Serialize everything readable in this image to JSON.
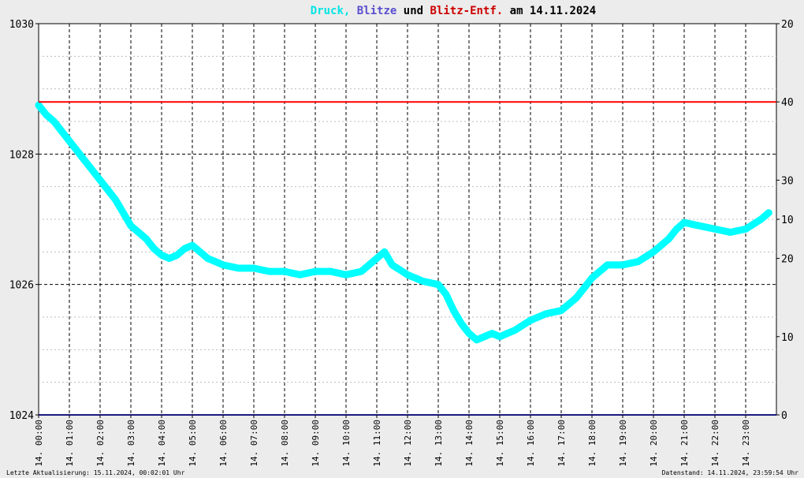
{
  "chart_data": {
    "type": "line",
    "title_parts": [
      {
        "text": "Druck,",
        "color": "#00e5e5"
      },
      {
        "text": "Blitze",
        "color": "#5a4fcf"
      },
      {
        "text": "und",
        "color": "#000000"
      },
      {
        "text": "Blitz-Entf.",
        "color": "#cc0000"
      },
      {
        "text": "am 14.11.2024",
        "color": "#000000"
      }
    ],
    "left_ticks": [
      "1030",
      "1028",
      "1026",
      "1024"
    ],
    "left_tick_values": [
      1030,
      1028,
      1026,
      1024
    ],
    "ylim_left": [
      1024,
      1030
    ],
    "right_ticks": [
      {
        "label": "20",
        "frac": 0.0
      },
      {
        "label": "40",
        "frac": 0.2
      },
      {
        "label": "30",
        "frac": 0.4
      },
      {
        "label": "10",
        "frac": 0.5
      },
      {
        "label": "20",
        "frac": 0.6
      },
      {
        "label": "10",
        "frac": 0.8
      },
      {
        "label": "0",
        "frac": 1.0
      }
    ],
    "x_labels": [
      "14. 00:00",
      "14. 01:00",
      "14. 02:00",
      "14. 03:00",
      "14. 04:00",
      "14. 05:00",
      "14. 06:00",
      "14. 07:00",
      "14. 08:00",
      "14. 09:00",
      "14. 10:00",
      "14. 11:00",
      "14. 12:00",
      "14. 13:00",
      "14. 14:00",
      "14. 15:00",
      "14. 16:00",
      "14. 17:00",
      "14. 18:00",
      "14. 19:00",
      "14. 20:00",
      "14. 21:00",
      "14. 22:00",
      "14. 23:00"
    ],
    "xlim_hours": [
      0,
      24
    ],
    "series": [
      {
        "color": "#00ffff",
        "x_hours": [
          0,
          0.25,
          0.5,
          0.75,
          1,
          1.25,
          1.5,
          1.75,
          2,
          2.25,
          2.5,
          2.75,
          3,
          3.25,
          3.5,
          3.75,
          4,
          4.25,
          4.5,
          4.75,
          5,
          5.25,
          5.5,
          5.75,
          6,
          6.5,
          7,
          7.5,
          8,
          8.5,
          9,
          9.5,
          10,
          10.5,
          11,
          11.25,
          11.5,
          12,
          12.5,
          13,
          13.25,
          13.5,
          13.75,
          14,
          14.25,
          14.5,
          14.75,
          15,
          15.5,
          16,
          16.5,
          17,
          17.25,
          17.5,
          17.75,
          18,
          18.5,
          19,
          19.5,
          20,
          20.25,
          20.5,
          20.75,
          21,
          21.5,
          22,
          22.5,
          23,
          23.5,
          23.75
        ],
        "values": [
          1028.75,
          1028.6,
          1028.5,
          1028.35,
          1028.2,
          1028.05,
          1027.9,
          1027.75,
          1027.6,
          1027.45,
          1027.3,
          1027.1,
          1026.9,
          1026.8,
          1026.7,
          1026.55,
          1026.45,
          1026.4,
          1026.45,
          1026.55,
          1026.6,
          1026.5,
          1026.4,
          1026.35,
          1026.3,
          1026.25,
          1026.25,
          1026.2,
          1026.2,
          1026.15,
          1026.2,
          1026.2,
          1026.15,
          1026.2,
          1026.4,
          1026.5,
          1026.3,
          1026.15,
          1026.05,
          1026.0,
          1025.85,
          1025.6,
          1025.4,
          1025.25,
          1025.15,
          1025.2,
          1025.25,
          1025.2,
          1025.3,
          1025.45,
          1025.55,
          1025.6,
          1025.7,
          1025.8,
          1025.95,
          1026.1,
          1026.3,
          1026.3,
          1026.35,
          1026.5,
          1026.6,
          1026.7,
          1026.85,
          1026.95,
          1026.9,
          1026.85,
          1026.8,
          1026.85,
          1027.0,
          1027.1
        ]
      },
      {
        "color": "#ff0000",
        "frac_level": 0.2
      },
      {
        "color": "#1a1a80",
        "frac_level": 1.0
      }
    ]
  },
  "footer": {
    "left": "Letzte Aktualisierung: 15.11.2024, 00:02:01 Uhr",
    "right": "Datenstand: 14.11.2024, 23:59:54 Uhr"
  }
}
